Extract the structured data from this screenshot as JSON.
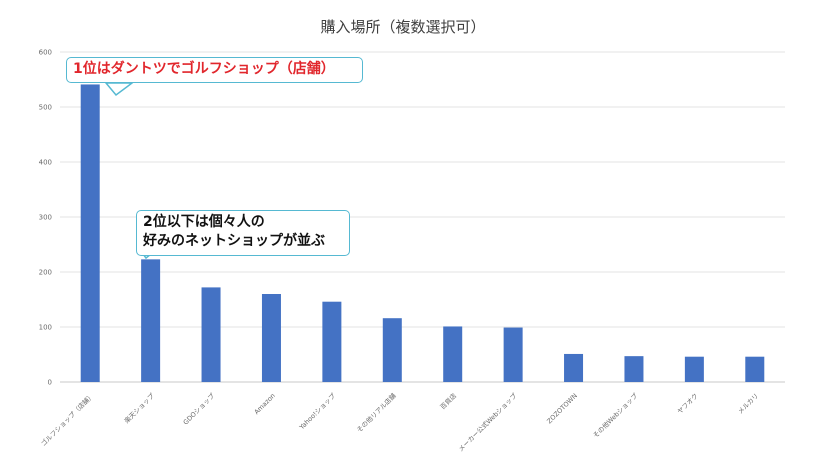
{
  "chart_data": {
    "type": "bar",
    "title": "購入場所（複数選択可）",
    "categories": [
      "ゴルフショップ（店舗）",
      "楽天ショップ",
      "GDOショップ",
      "Amazon",
      "Yahoo!ショップ",
      "その他リアル店舗",
      "百貨店",
      "メーカー公式Webショップ",
      "ZOZOTOWN",
      "その他Webショップ",
      "ヤフオク",
      "メルカリ"
    ],
    "values": [
      541,
      223,
      172,
      160,
      146,
      116,
      101,
      99,
      51,
      47,
      46,
      46
    ],
    "ylim": [
      0,
      600
    ],
    "yticks": [
      0,
      100,
      200,
      300,
      400,
      500,
      600
    ],
    "grid": true,
    "bar_color": "#4472c4",
    "annotations": [
      {
        "text": "1位はダントツでゴルフショップ（店舗）",
        "color": "#e1262c"
      },
      {
        "lines": [
          "2位以下は個々人の",
          "好みのネットショップが並ぶ"
        ],
        "color": "#111111"
      }
    ]
  }
}
